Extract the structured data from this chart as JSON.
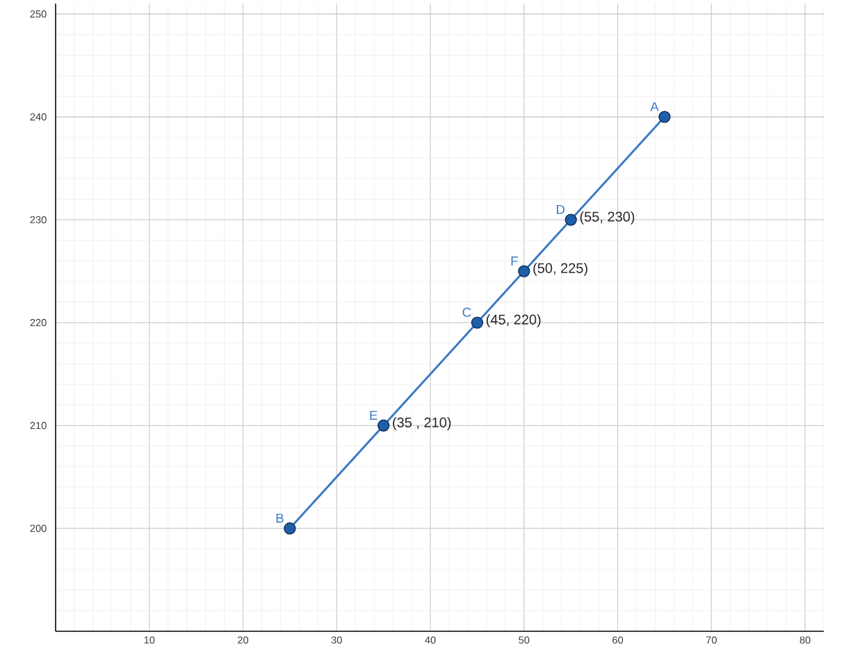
{
  "chart_data": {
    "type": "line",
    "xlim": [
      0,
      82
    ],
    "ylim": [
      190,
      251
    ],
    "xticks": [
      10,
      20,
      30,
      40,
      50,
      60,
      70,
      80
    ],
    "yticks": [
      200,
      210,
      220,
      230,
      240,
      250
    ],
    "grid": true,
    "marker": "circle",
    "line_style": "solid",
    "series": [
      {
        "color": "#3a78c3",
        "x": [
          25,
          35,
          45,
          50,
          55,
          65
        ],
        "values": [
          200,
          210,
          220,
          225,
          230,
          240
        ]
      }
    ],
    "annotations": [
      {
        "text": "A",
        "x": 65,
        "y": 240
      },
      {
        "text": "B",
        "x": 25,
        "y": 200
      },
      {
        "text": "C",
        "x": 45,
        "y": 220
      },
      {
        "text": "D",
        "x": 55,
        "y": 230
      },
      {
        "text": "E",
        "x": 35,
        "y": 210
      },
      {
        "text": "F",
        "x": 50,
        "y": 225
      },
      {
        "text": "(55, 230)",
        "x": 55,
        "y": 230
      },
      {
        "text": "(50, 225)",
        "x": 50,
        "y": 225
      },
      {
        "text": "(45, 220)",
        "x": 45,
        "y": 220
      },
      {
        "text": "(35 , 210)",
        "x": 35,
        "y": 210
      }
    ]
  }
}
